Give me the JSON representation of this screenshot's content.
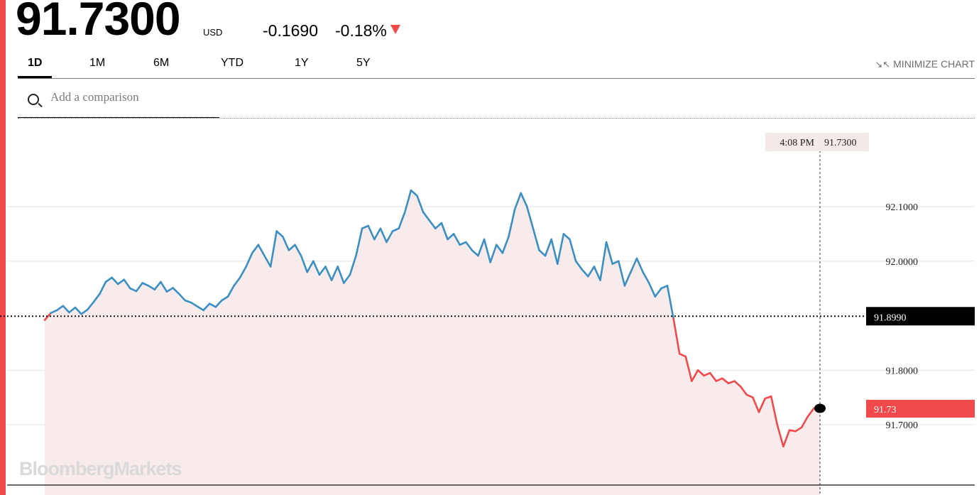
{
  "header": {
    "price": "91.7300",
    "currency": "USD",
    "change": "-0.1690",
    "change_pct": "-0.18%",
    "direction_icon": "triangle-down-icon",
    "direction_color": "#f24a4a"
  },
  "tabs": [
    {
      "label": "1D",
      "active": true
    },
    {
      "label": "1M",
      "active": false
    },
    {
      "label": "6M",
      "active": false
    },
    {
      "label": "YTD",
      "active": false
    },
    {
      "label": "1Y",
      "active": false
    },
    {
      "label": "5Y",
      "active": false
    }
  ],
  "minimize_label": "MINIMIZE CHART",
  "search": {
    "placeholder": "Add a comparison",
    "value": ""
  },
  "watermark": "BloombergMarkets",
  "colors": {
    "up": "#3b8fc2",
    "down": "#f24a4a",
    "fill": "#f7ebeb",
    "accent": "#f24a4a"
  },
  "chart_data": {
    "type": "line",
    "series": [
      {
        "values": [
          91.892,
          91.905,
          91.91,
          91.918,
          91.906,
          91.915,
          91.903,
          91.911,
          91.925,
          91.94,
          91.962,
          91.97,
          91.958,
          91.966,
          91.95,
          91.945,
          91.96,
          91.955,
          91.948,
          91.962,
          91.944,
          91.951,
          91.94,
          91.928,
          91.924,
          91.917,
          91.91,
          91.922,
          91.916,
          91.928,
          91.935,
          91.955,
          91.97,
          91.99,
          92.015,
          92.03,
          92.01,
          91.99,
          92.055,
          92.045,
          92.02,
          92.03,
          92.01,
          91.98,
          92.0,
          91.975,
          91.99,
          91.965,
          91.99,
          91.96,
          91.975,
          92.01,
          92.06,
          92.065,
          92.04,
          92.06,
          92.035,
          92.055,
          92.06,
          92.09,
          92.13,
          92.12,
          92.09,
          92.075,
          92.06,
          92.07,
          92.04,
          92.05,
          92.03,
          92.035,
          92.02,
          92.01,
          92.04,
          91.998,
          92.03,
          92.015,
          92.045,
          92.095,
          92.125,
          92.1,
          92.06,
          92.02,
          92.01,
          92.04,
          91.995,
          92.05,
          92.04,
          92.0,
          91.985,
          91.972,
          91.99,
          91.965,
          92.035,
          91.995,
          92.0,
          91.955,
          91.98,
          92.005,
          91.98,
          91.96,
          91.935,
          91.95,
          91.955,
          91.895,
          91.83,
          91.825,
          91.78,
          91.8,
          91.79,
          91.795,
          91.78,
          91.785,
          91.776,
          91.78,
          91.77,
          91.755,
          91.75,
          91.723,
          91.748,
          91.752,
          91.7,
          91.66,
          91.69,
          91.688,
          91.695,
          91.715,
          91.73,
          91.735
        ]
      }
    ],
    "open_value": 91.899,
    "last_value": 91.73,
    "last_label": "91.73",
    "open_label": "91.8990",
    "yticks": [
      {
        "value": 92.1,
        "label": "92.1000"
      },
      {
        "value": 92.0,
        "label": "92.0000"
      },
      {
        "value": 91.8,
        "label": "91.8000"
      },
      {
        "value": 91.7,
        "label": "91.7000"
      }
    ],
    "ylim": [
      91.6,
      92.2
    ],
    "crosshair": {
      "time": "4:08 PM",
      "value": "91.7300"
    },
    "grid": true
  }
}
